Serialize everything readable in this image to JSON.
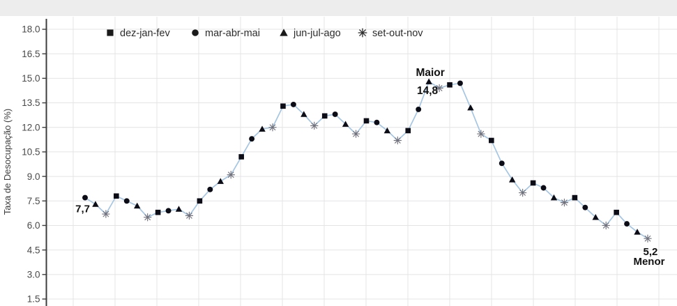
{
  "chart_data": {
    "type": "line",
    "title": "",
    "xlabel": "",
    "ylabel": "Taxa de Desocupação (%)",
    "ylim": [
      1.5,
      18.0
    ],
    "y_ticks": [
      18.0,
      16.5,
      15.0,
      13.5,
      12.0,
      10.5,
      9.0,
      7.5,
      6.0,
      4.5,
      3.0,
      1.5
    ],
    "grid": true,
    "legend_position": "top-inside",
    "legend": [
      {
        "label": "dez-jan-fev",
        "marker": "square"
      },
      {
        "label": "mar-abr-mai",
        "marker": "circle"
      },
      {
        "label": "jun-jul-ago",
        "marker": "triangle"
      },
      {
        "label": "set-out-nov",
        "marker": "asterisk"
      }
    ],
    "points": [
      {
        "quarter": "mar-abr-mai",
        "value": 7.7
      },
      {
        "quarter": "jun-jul-ago",
        "value": 7.3
      },
      {
        "quarter": "set-out-nov",
        "value": 6.7
      },
      {
        "quarter": "dez-jan-fev",
        "value": 7.8
      },
      {
        "quarter": "mar-abr-mai",
        "value": 7.5
      },
      {
        "quarter": "jun-jul-ago",
        "value": 7.2
      },
      {
        "quarter": "set-out-nov",
        "value": 6.5
      },
      {
        "quarter": "dez-jan-fev",
        "value": 6.8
      },
      {
        "quarter": "mar-abr-mai",
        "value": 6.9
      },
      {
        "quarter": "jun-jul-ago",
        "value": 7.0
      },
      {
        "quarter": "set-out-nov",
        "value": 6.6
      },
      {
        "quarter": "dez-jan-fev",
        "value": 7.5
      },
      {
        "quarter": "mar-abr-mai",
        "value": 8.2
      },
      {
        "quarter": "jun-jul-ago",
        "value": 8.7
      },
      {
        "quarter": "set-out-nov",
        "value": 9.1
      },
      {
        "quarter": "dez-jan-fev",
        "value": 10.2
      },
      {
        "quarter": "mar-abr-mai",
        "value": 11.3
      },
      {
        "quarter": "jun-jul-ago",
        "value": 11.9
      },
      {
        "quarter": "set-out-nov",
        "value": 12.0
      },
      {
        "quarter": "dez-jan-fev",
        "value": 13.3
      },
      {
        "quarter": "mar-abr-mai",
        "value": 13.4
      },
      {
        "quarter": "jun-jul-ago",
        "value": 12.8
      },
      {
        "quarter": "set-out-nov",
        "value": 12.1
      },
      {
        "quarter": "dez-jan-fev",
        "value": 12.7
      },
      {
        "quarter": "mar-abr-mai",
        "value": 12.8
      },
      {
        "quarter": "jun-jul-ago",
        "value": 12.2
      },
      {
        "quarter": "set-out-nov",
        "value": 11.6
      },
      {
        "quarter": "dez-jan-fev",
        "value": 12.4
      },
      {
        "quarter": "mar-abr-mai",
        "value": 12.3
      },
      {
        "quarter": "jun-jul-ago",
        "value": 11.8
      },
      {
        "quarter": "set-out-nov",
        "value": 11.2
      },
      {
        "quarter": "dez-jan-fev",
        "value": 11.8
      },
      {
        "quarter": "mar-abr-mai",
        "value": 13.1
      },
      {
        "quarter": "jun-jul-ago",
        "value": 14.8
      },
      {
        "quarter": "set-out-nov",
        "value": 14.4
      },
      {
        "quarter": "dez-jan-fev",
        "value": 14.6
      },
      {
        "quarter": "mar-abr-mai",
        "value": 14.7
      },
      {
        "quarter": "jun-jul-ago",
        "value": 13.2
      },
      {
        "quarter": "set-out-nov",
        "value": 11.6
      },
      {
        "quarter": "dez-jan-fev",
        "value": 11.2
      },
      {
        "quarter": "mar-abr-mai",
        "value": 9.8
      },
      {
        "quarter": "jun-jul-ago",
        "value": 8.8
      },
      {
        "quarter": "set-out-nov",
        "value": 8.0
      },
      {
        "quarter": "dez-jan-fev",
        "value": 8.6
      },
      {
        "quarter": "mar-abr-mai",
        "value": 8.3
      },
      {
        "quarter": "jun-jul-ago",
        "value": 7.7
      },
      {
        "quarter": "set-out-nov",
        "value": 7.4
      },
      {
        "quarter": "dez-jan-fev",
        "value": 7.7
      },
      {
        "quarter": "mar-abr-mai",
        "value": 7.1
      },
      {
        "quarter": "jun-jul-ago",
        "value": 6.5
      },
      {
        "quarter": "set-out-nov",
        "value": 6.0
      },
      {
        "quarter": "dez-jan-fev",
        "value": 6.8
      },
      {
        "quarter": "mar-abr-mai",
        "value": 6.1
      },
      {
        "quarter": "jun-jul-ago",
        "value": 5.6
      },
      {
        "quarter": "set-out-nov",
        "value": 5.2
      }
    ],
    "annotations": [
      {
        "id": "first-value",
        "text": "7,7",
        "point_index": 0
      },
      {
        "id": "max-label",
        "text": "Maior",
        "point_index": 33
      },
      {
        "id": "max-value",
        "text": "14,8",
        "point_index": 33
      },
      {
        "id": "min-value",
        "text": "5,2",
        "point_index": 54
      },
      {
        "id": "min-label",
        "text": "Menor",
        "point_index": 54
      }
    ],
    "colors": {
      "line": "#a5c6e3",
      "marker": "#0c0c16",
      "asterisk_marker": "#70717b",
      "grid": "#e4e4e6",
      "axis": "#3d3d3d",
      "tick_label": "#4a4a4a",
      "axis_title": "#3d3d3d",
      "legend_text": "#2b2b2b",
      "legend_marker": "#1a1a1a",
      "annotation": "#111111"
    }
  }
}
